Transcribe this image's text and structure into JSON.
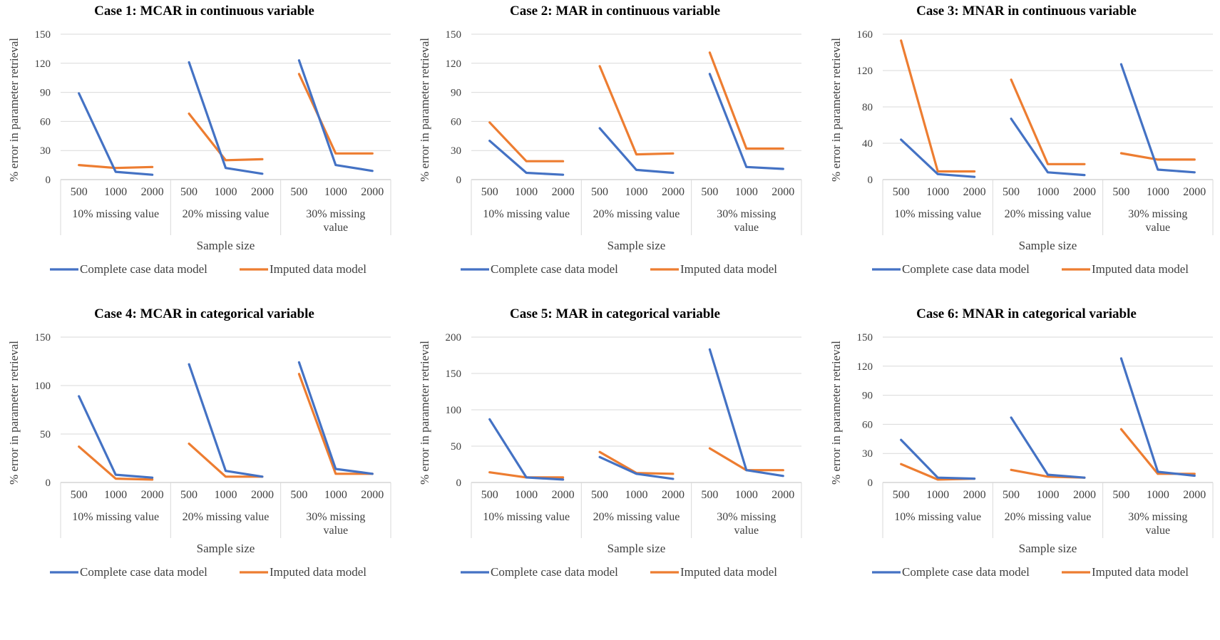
{
  "colors": {
    "complete": "#4472C4",
    "imputed": "#ED7D31",
    "grid": "#D9D9D9",
    "axis": "#BFBFBF"
  },
  "chart_data": [
    {
      "type": "line",
      "title": "Case 1: MCAR in continuous  variable",
      "xlabel": "Sample size",
      "ylabel": "% error in parameter retrieval",
      "ylim": [
        0,
        150
      ],
      "yticks": [
        "0",
        "30",
        "60",
        "90",
        "120",
        "150"
      ],
      "categories": [
        "500",
        "1000",
        "2000"
      ],
      "groups": [
        [
          "10% missing value"
        ],
        [
          "20% missing value"
        ],
        [
          "30% missing",
          "value"
        ]
      ],
      "legend": "bottom",
      "series": [
        {
          "name": "Complete case data model",
          "values": [
            [
              89,
              8,
              5
            ],
            [
              121,
              12,
              6
            ],
            [
              123,
              15,
              9
            ]
          ]
        },
        {
          "name": "Imputed data model",
          "values": [
            [
              15,
              12,
              13
            ],
            [
              68,
              20,
              21
            ],
            [
              109,
              27,
              27
            ]
          ]
        }
      ]
    },
    {
      "type": "line",
      "title": "Case 2: MAR in continuous  variable",
      "xlabel": "Sample size",
      "ylabel": "% error in parameter retrieval",
      "ylim": [
        0,
        150
      ],
      "yticks": [
        "0",
        "30",
        "60",
        "90",
        "120",
        "150"
      ],
      "categories": [
        "500",
        "1000",
        "2000"
      ],
      "groups": [
        [
          "10% missing value"
        ],
        [
          "20% missing value"
        ],
        [
          "30% missing",
          "value"
        ]
      ],
      "legend": "bottom",
      "series": [
        {
          "name": "Complete case data model",
          "values": [
            [
              40,
              7,
              5
            ],
            [
              53,
              10,
              7
            ],
            [
              109,
              13,
              11
            ]
          ]
        },
        {
          "name": "Imputed data model",
          "values": [
            [
              59,
              19,
              19
            ],
            [
              117,
              26,
              27
            ],
            [
              131,
              32,
              32
            ]
          ]
        }
      ]
    },
    {
      "type": "line",
      "title": "Case 3: MNAR in continuous  variable",
      "xlabel": "Sample size",
      "ylabel": "% error in parameter retrieval",
      "ylim": [
        0,
        160
      ],
      "yticks": [
        "0",
        "40",
        "80",
        "120",
        "160"
      ],
      "categories": [
        "500",
        "1000",
        "2000"
      ],
      "groups": [
        [
          "10% missing value"
        ],
        [
          "20% missing value"
        ],
        [
          "30% missing",
          "value"
        ]
      ],
      "legend": "bottom",
      "series": [
        {
          "name": "Complete case data model",
          "values": [
            [
              44,
              6,
              3
            ],
            [
              67,
              8,
              5
            ],
            [
              127,
              11,
              8
            ]
          ]
        },
        {
          "name": "Imputed data model",
          "values": [
            [
              153,
              9,
              9
            ],
            [
              110,
              17,
              17
            ],
            [
              29,
              22,
              22
            ]
          ]
        }
      ]
    },
    {
      "type": "line",
      "title": "Case 4: MCAR in categorical  variable",
      "xlabel": "Sample size",
      "ylabel": "% error in parameter retrieval",
      "ylim": [
        0,
        150
      ],
      "yticks": [
        "0",
        "50",
        "100",
        "150"
      ],
      "categories": [
        "500",
        "1000",
        "2000"
      ],
      "groups": [
        [
          "10% missing value"
        ],
        [
          "20% missing value"
        ],
        [
          "30% missing",
          "value"
        ]
      ],
      "legend": "bottom",
      "series": [
        {
          "name": "Complete case data model",
          "values": [
            [
              89,
              8,
              5
            ],
            [
              122,
              12,
              6
            ],
            [
              124,
              14,
              9
            ]
          ]
        },
        {
          "name": "Imputed data model",
          "values": [
            [
              37,
              4,
              3
            ],
            [
              40,
              6,
              6
            ],
            [
              112,
              9,
              9
            ]
          ]
        }
      ]
    },
    {
      "type": "line",
      "title": "Case 5: MAR in categorical  variable",
      "xlabel": "Sample size",
      "ylabel": "% error in parameter retrieval",
      "ylim": [
        0,
        200
      ],
      "yticks": [
        "0",
        "50",
        "100",
        "150",
        "200"
      ],
      "categories": [
        "500",
        "1000",
        "2000"
      ],
      "groups": [
        [
          "10% missing value"
        ],
        [
          "20% missing value"
        ],
        [
          "30% missing",
          "value"
        ]
      ],
      "legend": "bottom",
      "series": [
        {
          "name": "Complete case data model",
          "values": [
            [
              87,
              7,
              4
            ],
            [
              35,
              12,
              5
            ],
            [
              183,
              17,
              9
            ]
          ]
        },
        {
          "name": "Imputed data model",
          "values": [
            [
              14,
              7,
              7
            ],
            [
              42,
              13,
              12
            ],
            [
              47,
              17,
              17
            ]
          ]
        }
      ]
    },
    {
      "type": "line",
      "title": "Case 6: MNAR in categorical  variable",
      "xlabel": "Sample size",
      "ylabel": "% error in parameter retrieval",
      "ylim": [
        0,
        150
      ],
      "yticks": [
        "0",
        "30",
        "60",
        "90",
        "120",
        "150"
      ],
      "categories": [
        "500",
        "1000",
        "2000"
      ],
      "groups": [
        [
          "10% missing value"
        ],
        [
          "20% missing value"
        ],
        [
          "30% missing",
          "value"
        ]
      ],
      "legend": "bottom",
      "series": [
        {
          "name": "Complete case data model",
          "values": [
            [
              44,
              5,
              4
            ],
            [
              67,
              8,
              5
            ],
            [
              128,
              11,
              7
            ]
          ]
        },
        {
          "name": "Imputed data model",
          "values": [
            [
              19,
              3,
              4
            ],
            [
              13,
              6,
              5
            ],
            [
              55,
              9,
              9
            ]
          ]
        }
      ]
    }
  ]
}
